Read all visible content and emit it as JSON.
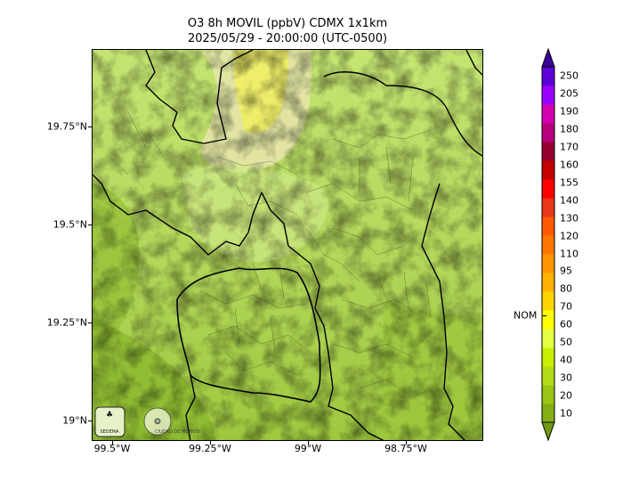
{
  "title": {
    "line1": "O3 8h MOVIL (ppbV) CDMX 1x1km",
    "line2": "2025/05/29 - 20:00:00 (UTC-0500)"
  },
  "map": {
    "lat_ticks": [
      "19.75°N",
      "19.5°N",
      "19.25°N",
      "19°N"
    ],
    "lon_ticks": [
      "99.5°W",
      "99.25°W",
      "99°W",
      "98.75°W"
    ],
    "logos": {
      "sedema": "SEDEMA",
      "cdmx": "CIUDAD DE MÉXICO"
    },
    "icon": "tree-icon"
  },
  "colorbar": {
    "levels": [
      "10",
      "20",
      "30",
      "40",
      "50",
      "60",
      "70",
      "80",
      "95",
      "110",
      "120",
      "130",
      "140",
      "155",
      "160",
      "170",
      "180",
      "190",
      "205",
      "250"
    ],
    "colors": [
      "#6f9a12",
      "#84ae14",
      "#9bc514",
      "#b3dc14",
      "#c8f000",
      "#e5ff44",
      "#ffff00",
      "#ffd500",
      "#ffb300",
      "#ff9500",
      "#ff7700",
      "#ff5a00",
      "#e8361b",
      "#ff0000",
      "#c40000",
      "#960030",
      "#b8007e",
      "#d400b0",
      "#9b00ff",
      "#5d00d8",
      "#3a0099"
    ],
    "nom_label": "NOM",
    "nom_value": 70
  },
  "colors": {
    "background": "#ffffff",
    "border": "#000000"
  }
}
